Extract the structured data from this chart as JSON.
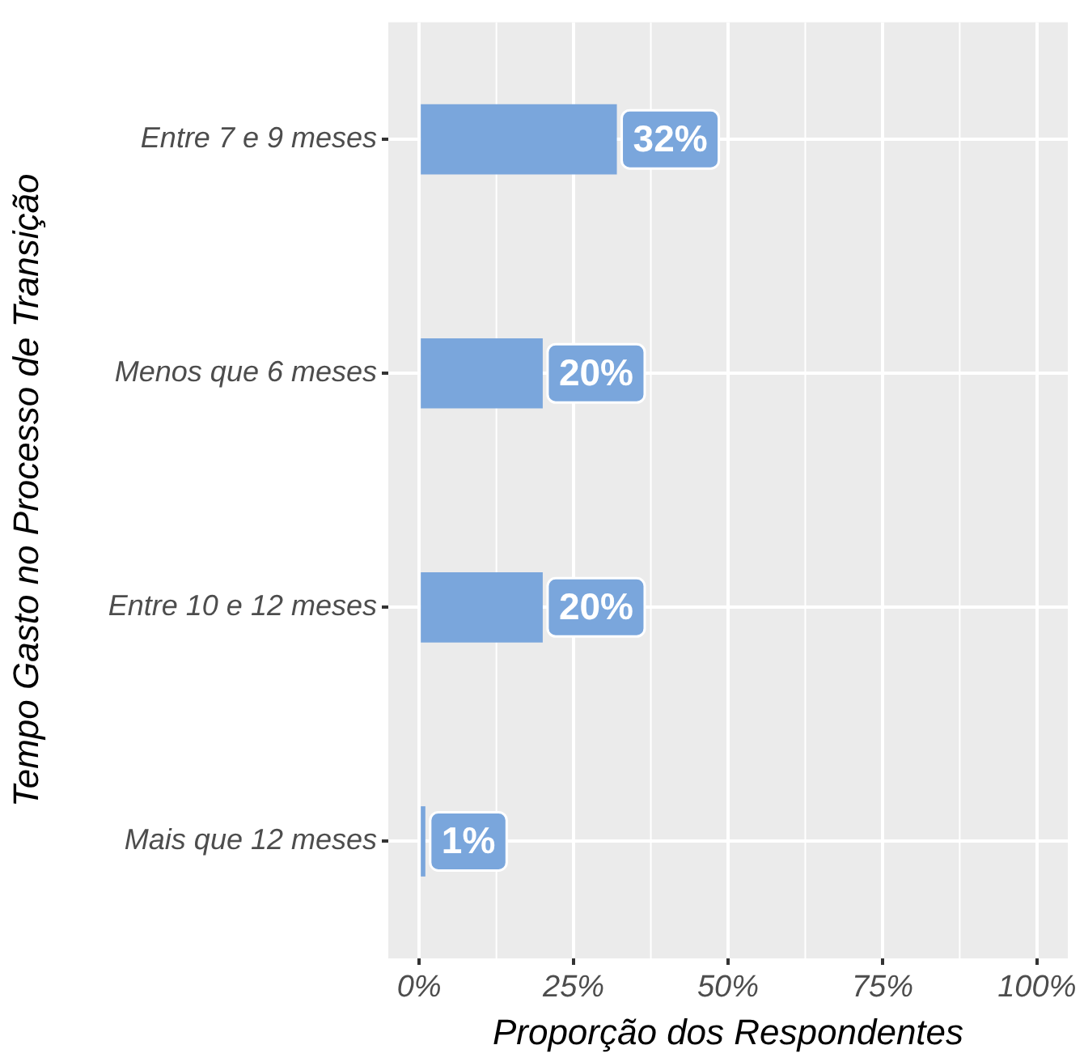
{
  "chart_data": {
    "type": "bar",
    "orientation": "horizontal",
    "xlabel": "Proporção dos Respondentes",
    "ylabel": "Tempo Gasto no Processo de Transição",
    "categories": [
      "Entre 7 e 9 meses",
      "Menos que 6 meses",
      "Entre 10 e 12 meses",
      "Mais que 12 meses"
    ],
    "values": [
      32,
      20,
      20,
      1
    ],
    "color": "#7aa6dc",
    "value_labels": [
      "32%",
      "20%",
      "20%",
      "1%"
    ],
    "xlim": [
      -5,
      105
    ],
    "xticks": [
      {
        "value": 0,
        "label": "0%"
      },
      {
        "value": 25,
        "label": "25%"
      },
      {
        "value": 50,
        "label": "50%"
      },
      {
        "value": 75,
        "label": "75%"
      },
      {
        "value": 100,
        "label": "100%"
      }
    ],
    "grid": true,
    "legend": false
  }
}
